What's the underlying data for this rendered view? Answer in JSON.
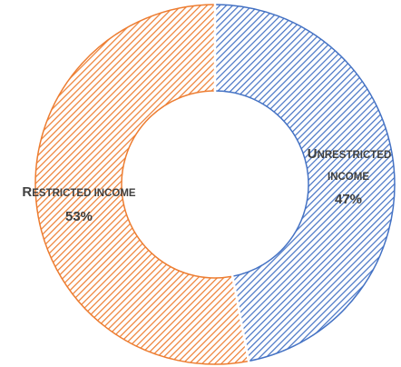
{
  "chart_data": {
    "type": "pie",
    "variant": "donut",
    "start_angle_deg": 0,
    "direction": "clockwise",
    "slices": [
      {
        "name_first": "U",
        "name_rest": "NRESTRICTED",
        "name_line2": "INCOME",
        "value": 47,
        "value_label": "47%",
        "color": "#4472C4",
        "hatch_color": "#4472C4"
      },
      {
        "name_first": "R",
        "name_rest": "ESTRICTED INCOME",
        "name_line2": "",
        "value": 53,
        "value_label": "53%",
        "color": "#ED7D31",
        "hatch_color": "#ED7D31"
      }
    ],
    "legend": "none",
    "pattern": "diagonal-hatch"
  }
}
